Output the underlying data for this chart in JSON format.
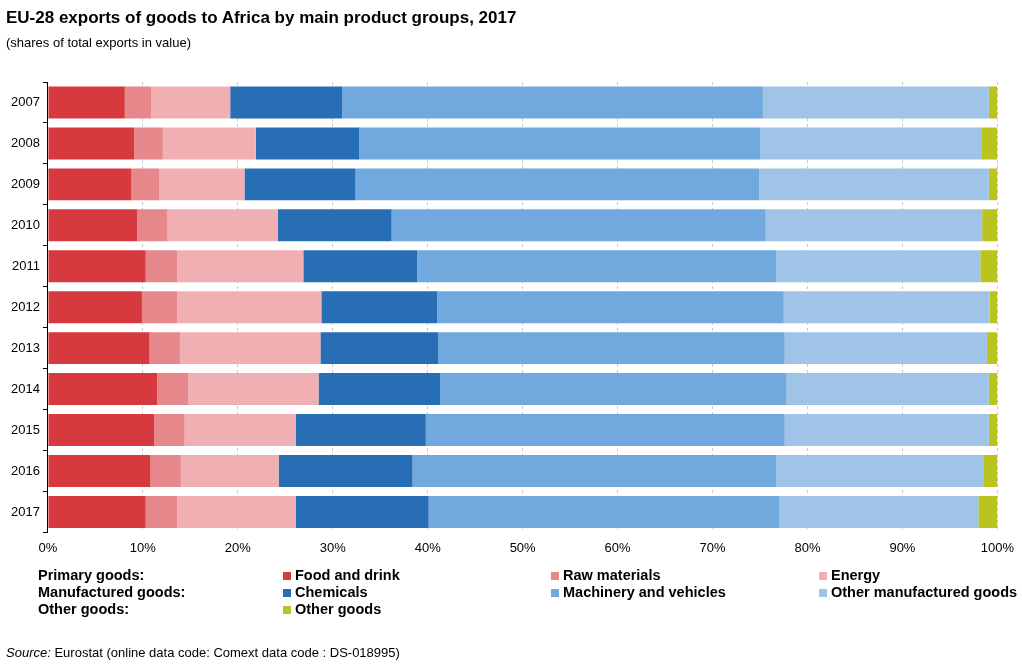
{
  "chart_data": {
    "type": "bar",
    "orientation": "horizontal",
    "stacked": true,
    "title": "EU-28 exports of goods to Africa by main product groups, 2017",
    "subtitle": "(shares of total exports in value)",
    "categories": [
      "2007",
      "2008",
      "2009",
      "2010",
      "2011",
      "2012",
      "2013",
      "2014",
      "2015",
      "2016",
      "2017"
    ],
    "series": [
      {
        "name": "Food and drink",
        "color": "#d63a3f",
        "values": [
          8.1,
          9.1,
          8.8,
          9.4,
          10.3,
          9.9,
          10.7,
          11.5,
          11.2,
          10.8,
          10.3
        ]
      },
      {
        "name": "Raw materials",
        "color": "#e6878b",
        "values": [
          2.8,
          3.0,
          2.9,
          3.2,
          3.3,
          3.7,
          3.2,
          3.3,
          3.2,
          3.2,
          3.3
        ]
      },
      {
        "name": "Energy",
        "color": "#f0b0b3",
        "values": [
          8.3,
          9.8,
          9.0,
          11.6,
          13.3,
          15.2,
          14.8,
          13.7,
          11.7,
          10.3,
          12.5
        ]
      },
      {
        "name": "Chemicals",
        "color": "#286eb4",
        "values": [
          11.8,
          10.9,
          11.7,
          12.0,
          12.0,
          12.2,
          12.4,
          12.8,
          13.7,
          14.1,
          14.0
        ]
      },
      {
        "name": "Machinery and vehicles",
        "color": "#71a8de",
        "values": [
          44.3,
          42.2,
          42.5,
          39.4,
          37.8,
          36.5,
          36.5,
          36.5,
          37.8,
          38.3,
          36.9
        ]
      },
      {
        "name": "Other manufactured goods",
        "color": "#a0c4e8",
        "values": [
          23.8,
          23.3,
          24.2,
          22.8,
          21.5,
          21.7,
          21.3,
          21.3,
          21.5,
          21.8,
          21.0
        ]
      },
      {
        "name": "Other goods",
        "color": "#bac41e",
        "values": [
          0.9,
          1.7,
          0.9,
          1.6,
          1.8,
          0.8,
          1.1,
          0.9,
          0.9,
          1.5,
          2.0
        ]
      }
    ],
    "xlim": [
      0,
      100
    ],
    "xticks": [
      {
        "value": 0,
        "label": "0%"
      },
      {
        "value": 10,
        "label": "10%"
      },
      {
        "value": 20,
        "label": "20%"
      },
      {
        "value": 30,
        "label": "30%"
      },
      {
        "value": 40,
        "label": "40%"
      },
      {
        "value": 50,
        "label": "50%"
      },
      {
        "value": 60,
        "label": "60%"
      },
      {
        "value": 70,
        "label": "70%"
      },
      {
        "value": 80,
        "label": "80%"
      },
      {
        "value": 90,
        "label": "90%"
      },
      {
        "value": 100,
        "label": "100%"
      }
    ],
    "grid": "x",
    "legend": "bottom",
    "annotations": [
      "Primary goods:",
      "Manufactured goods:",
      "Other goods:",
      "Source: Eurostat (online data code: Comext data code : DS-018995)"
    ]
  }
}
